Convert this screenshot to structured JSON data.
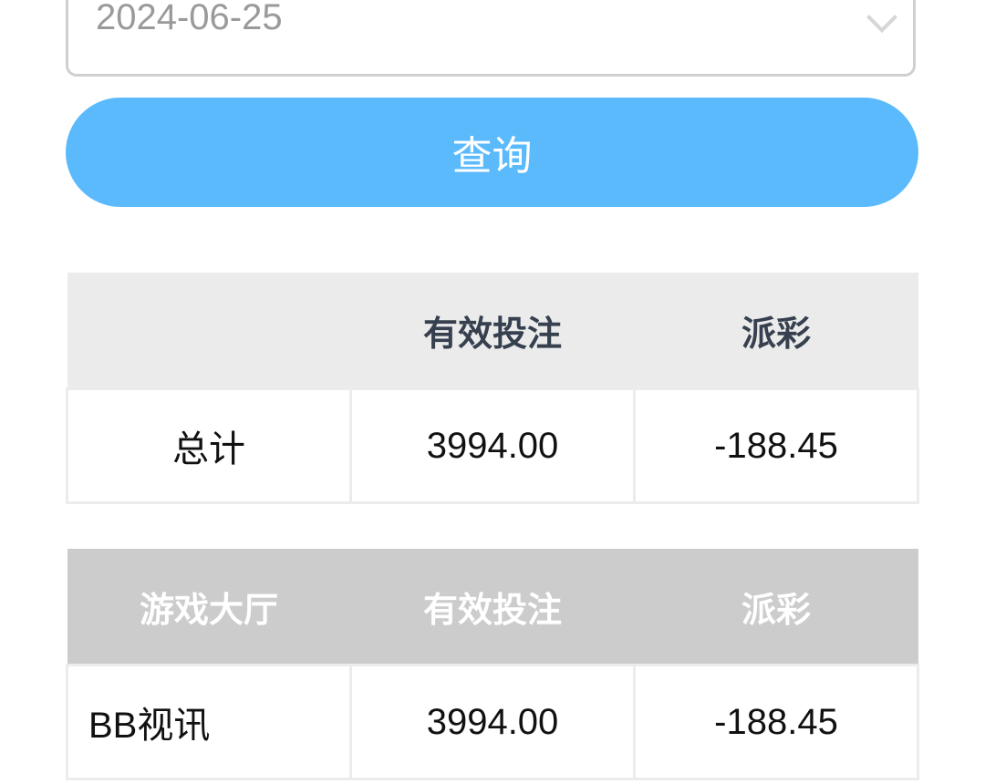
{
  "date_field": {
    "value": "2024-06-25",
    "icon": "chevron-down-icon"
  },
  "query_button": {
    "label": "查询",
    "color": "#5bbafc"
  },
  "summary_table": {
    "headers": [
      "",
      "有效投注",
      "派彩"
    ],
    "rows": [
      [
        "总计",
        "3994.00",
        "-188.45"
      ]
    ]
  },
  "hall_table": {
    "headers": [
      "游戏大厅",
      "有效投注",
      "派彩"
    ],
    "rows": [
      [
        "BB视讯",
        "3994.00",
        "-188.45"
      ]
    ]
  }
}
